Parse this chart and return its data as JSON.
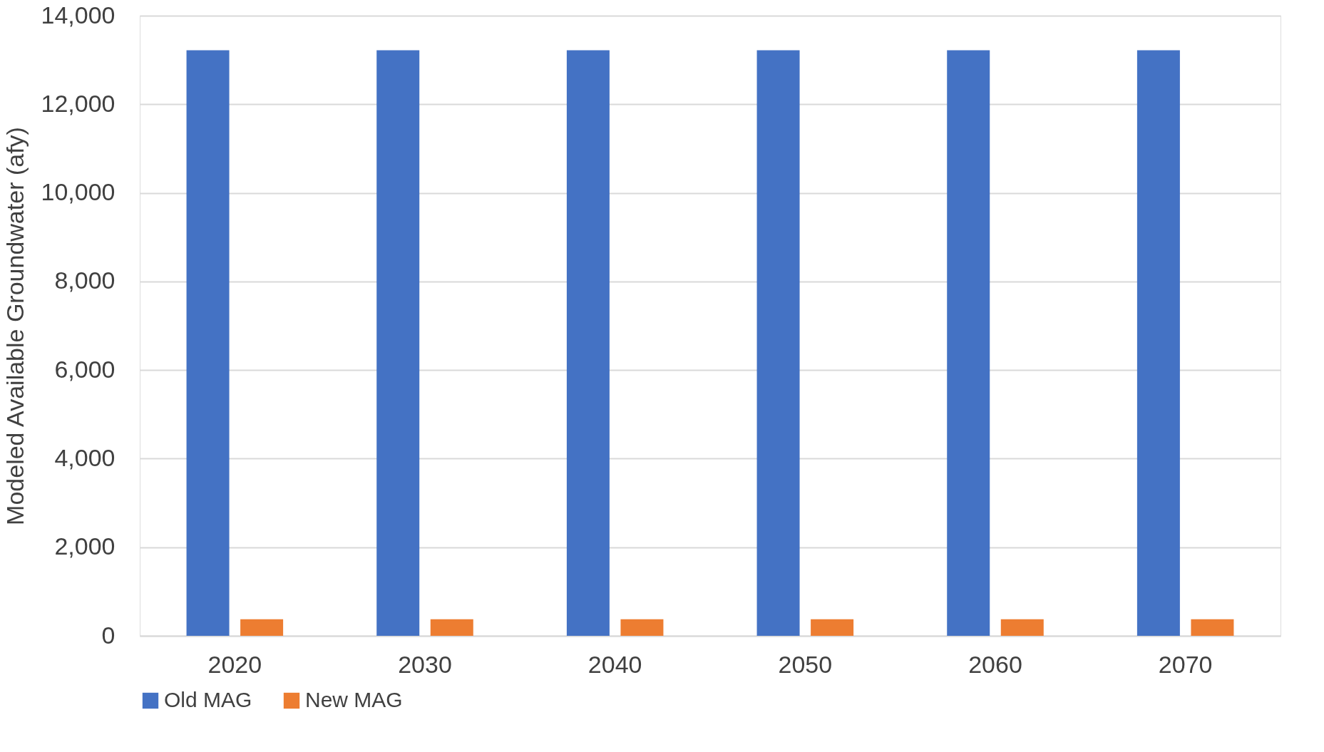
{
  "chart_data": {
    "type": "bar",
    "ylabel": "Modeled Available Groundwater (afy)",
    "categories": [
      "2020",
      "2030",
      "2040",
      "2050",
      "2060",
      "2070"
    ],
    "series": [
      {
        "name": "Old MAG",
        "color": "#4472c4",
        "values": [
          13220,
          13220,
          13220,
          13220,
          13220,
          13220
        ]
      },
      {
        "name": "New MAG",
        "color": "#ed7d31",
        "values": [
          375,
          375,
          375,
          375,
          375,
          375
        ]
      }
    ],
    "ylim": [
      0,
      14000
    ],
    "yticks": [
      {
        "value": 0,
        "label": "0"
      },
      {
        "value": 2000,
        "label": "2,000"
      },
      {
        "value": 4000,
        "label": "4,000"
      },
      {
        "value": 6000,
        "label": "6,000"
      },
      {
        "value": 8000,
        "label": "8,000"
      },
      {
        "value": 10000,
        "label": "10,000"
      },
      {
        "value": 12000,
        "label": "12,000"
      },
      {
        "value": 14000,
        "label": "14,000"
      }
    ],
    "grid": "y",
    "legend": "bottom"
  }
}
